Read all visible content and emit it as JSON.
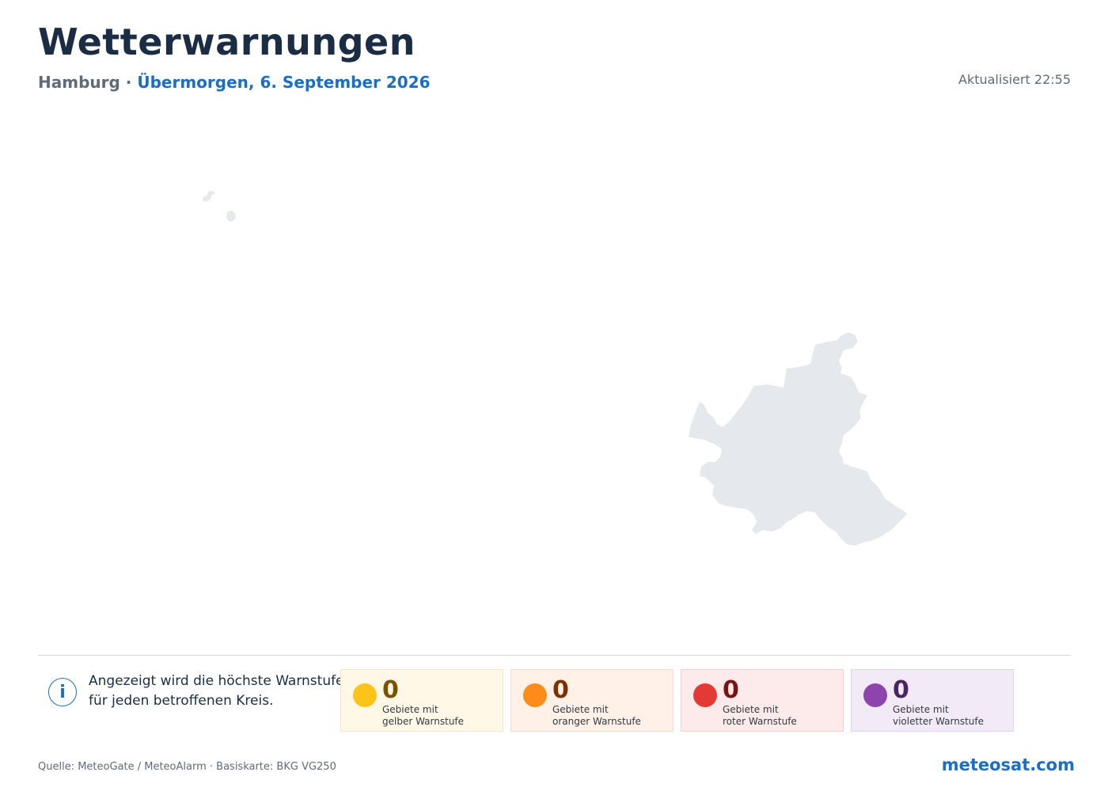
{
  "header": {
    "title": "Wetterwarnungen",
    "region": "Hamburg",
    "separator": " · ",
    "date": "Übermorgen, 6. September 2026",
    "updated": "Aktualisiert 22:55"
  },
  "map": {
    "region_fill": "#e5e9ee",
    "areas": [
      "hamburg-mainland",
      "neuwerk-island",
      "scharhoern-island"
    ]
  },
  "info": {
    "icon": "i",
    "line1": "Angezeigt wird die höchste Warnstufe",
    "line2": "für jeden betroffenen Kreis."
  },
  "stats": [
    {
      "key": "yellow",
      "count": "0",
      "label1": "Gebiete mit",
      "label2": "gelber Warnstufe",
      "color": "#fcc419"
    },
    {
      "key": "orange",
      "count": "0",
      "label1": "Gebiete mit",
      "label2": "oranger Warnstufe",
      "color": "#fd8c1a"
    },
    {
      "key": "red",
      "count": "0",
      "label1": "Gebiete mit",
      "label2": "roter Warnstufe",
      "color": "#e53935"
    },
    {
      "key": "violet",
      "count": "0",
      "label1": "Gebiete mit",
      "label2": "violetter Warnstufe",
      "color": "#8e44ad"
    }
  ],
  "footer": {
    "source": "Quelle: MeteoGate / MeteoAlarm · Basiskarte: BKG VG250",
    "brand": "meteosat.com"
  }
}
